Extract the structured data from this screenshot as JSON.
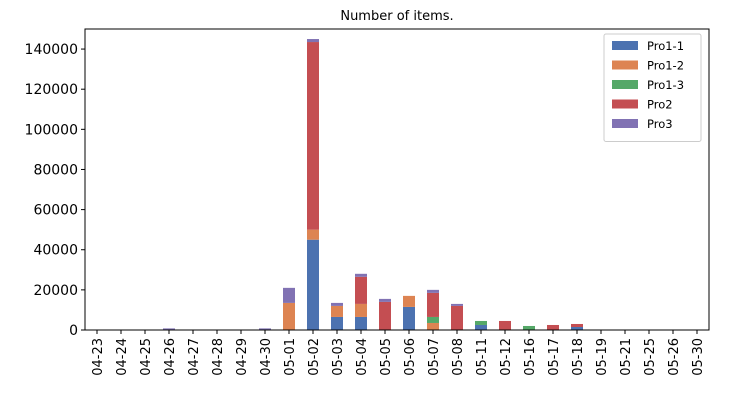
{
  "chart_data": {
    "type": "bar",
    "stacked": true,
    "title": "Number of items.",
    "xlabel": "",
    "ylabel": "",
    "ylim": [
      0,
      150000
    ],
    "yticks": [
      0,
      20000,
      40000,
      60000,
      80000,
      100000,
      120000,
      140000
    ],
    "grid": false,
    "legend_position": "top-right",
    "categories": [
      "04-23",
      "04-24",
      "04-25",
      "04-26",
      "04-27",
      "04-28",
      "04-29",
      "04-30",
      "05-01",
      "05-02",
      "05-03",
      "05-04",
      "05-05",
      "05-06",
      "05-07",
      "05-08",
      "05-11",
      "05-12",
      "05-16",
      "05-17",
      "05-18",
      "05-19",
      "05-21",
      "05-25",
      "05-26",
      "05-30"
    ],
    "series": [
      {
        "name": "Pro1-1",
        "color": "#4c72b0",
        "values": [
          0,
          0,
          0,
          0,
          0,
          0,
          0,
          0,
          0,
          45000,
          6500,
          6500,
          0,
          11500,
          0,
          0,
          2500,
          0,
          0,
          0,
          1500,
          0,
          0,
          0,
          0,
          0
        ]
      },
      {
        "name": "Pro1-2",
        "color": "#dd8452",
        "values": [
          0,
          0,
          0,
          0,
          0,
          0,
          0,
          0,
          13500,
          5000,
          5500,
          6500,
          0,
          5500,
          3500,
          0,
          0,
          0,
          0,
          0,
          0,
          0,
          0,
          0,
          0,
          0
        ]
      },
      {
        "name": "Pro1-3",
        "color": "#55a868",
        "values": [
          0,
          0,
          0,
          0,
          0,
          0,
          0,
          0,
          0,
          0,
          0,
          0,
          0,
          0,
          3000,
          0,
          2000,
          0,
          2000,
          0,
          0,
          0,
          0,
          0,
          0,
          0
        ]
      },
      {
        "name": "Pro2",
        "color": "#c44e52",
        "values": [
          0,
          0,
          0,
          0,
          0,
          0,
          0,
          0,
          0,
          93500,
          0,
          13500,
          14000,
          0,
          12000,
          12000,
          0,
          4500,
          0,
          2500,
          1500,
          0,
          0,
          0,
          0,
          0
        ]
      },
      {
        "name": "Pro3",
        "color": "#8172b3",
        "values": [
          0,
          0,
          0,
          800,
          0,
          0,
          0,
          800,
          7500,
          1500,
          1500,
          1500,
          1500,
          0,
          1500,
          1000,
          0,
          0,
          0,
          0,
          0,
          0,
          0,
          0,
          0,
          0
        ]
      }
    ]
  }
}
